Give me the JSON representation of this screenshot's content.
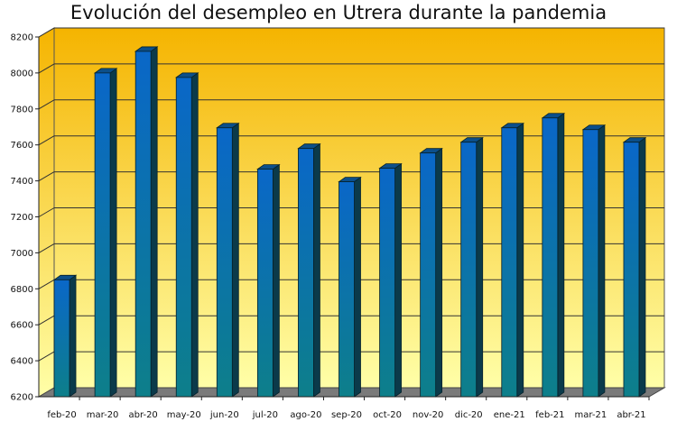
{
  "chart_data": {
    "type": "bar",
    "title": "Evolución del desempleo en Utrera durante la pandemia",
    "xlabel": "",
    "ylabel": "",
    "categories": [
      "feb-20",
      "mar-20",
      "abr-20",
      "may-20",
      "jun-20",
      "jul-20",
      "ago-20",
      "sep-20",
      "oct-20",
      "nov-20",
      "dic-20",
      "ene-21",
      "feb-21",
      "mar-21",
      "abr-21"
    ],
    "values": [
      6850,
      8000,
      8120,
      7975,
      7695,
      7465,
      7580,
      7395,
      7470,
      7555,
      7615,
      7695,
      7750,
      7685,
      7615
    ],
    "ylim": [
      6200,
      8200
    ],
    "yticks": [
      6200,
      6400,
      6600,
      6800,
      7000,
      7200,
      7400,
      7600,
      7800,
      8000,
      8200
    ],
    "grid": true,
    "legend": "none",
    "colors": {
      "bar_top": "#0a67c8",
      "bar_bottom": "#0d7f8a",
      "bar_side": "#0b3a4a",
      "plot_top": "#f5b400",
      "plot_bottom": "#ffffa8",
      "floor": "#7a7a7a"
    }
  }
}
